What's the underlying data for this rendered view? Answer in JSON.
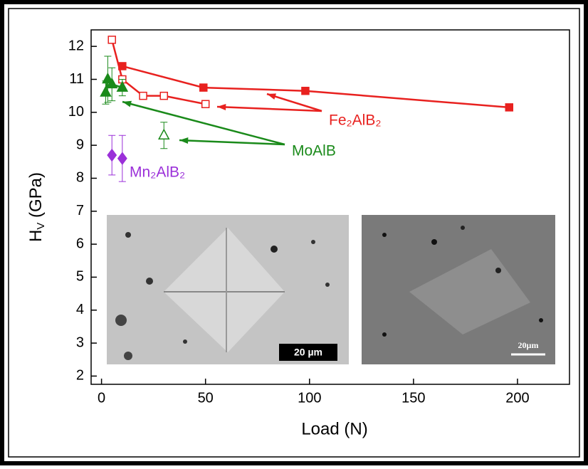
{
  "chart_data": {
    "type": "scatter",
    "x_label": "Load (N)",
    "y_label": {
      "main": "H",
      "sub": "V",
      "rest": " (GPa)"
    },
    "xlim": [
      -5,
      225
    ],
    "ylim": [
      1.75,
      12.5
    ],
    "xticks": [
      0,
      50,
      100,
      150,
      200
    ],
    "yticks": [
      2,
      3,
      4,
      5,
      6,
      7,
      8,
      9,
      10,
      11,
      12
    ],
    "grid": false,
    "series": [
      {
        "name": "Fe₂AlB₂",
        "color": "#e8211f",
        "marker": "square",
        "filled": true,
        "line": true,
        "x": [
          10,
          49,
          98,
          196
        ],
        "values": [
          11.4,
          10.75,
          10.65,
          10.15
        ]
      },
      {
        "color": "#e8211f",
        "marker": "square",
        "filled": false,
        "line": true,
        "x": [
          5,
          10,
          20,
          30,
          50
        ],
        "values": [
          12.2,
          11.0,
          10.5,
          10.5,
          10.25
        ]
      },
      {
        "name": "MoAlB",
        "color": "#1a8a1a",
        "marker": "triangle",
        "filled": true,
        "line": true,
        "x": [
          2,
          3,
          5,
          10
        ],
        "values": [
          10.6,
          11.0,
          10.85,
          10.75
        ],
        "errors": [
          0.35,
          0.7,
          0.5,
          0.25
        ]
      },
      {
        "color": "#1a8a1a",
        "marker": "triangle",
        "filled": false,
        "line": false,
        "x": [
          30
        ],
        "values": [
          9.3
        ],
        "errors": [
          0.4
        ]
      },
      {
        "name": "Mn₂AlB₂",
        "color": "#9b30d9",
        "marker": "diamond",
        "filled": true,
        "line": false,
        "x": [
          5,
          10
        ],
        "values": [
          8.7,
          8.6
        ],
        "errors": [
          0.6,
          0.7
        ]
      }
    ],
    "insets": [
      {
        "scale_bar": "20 µm"
      },
      {
        "scale_bar": "20µm"
      }
    ]
  }
}
